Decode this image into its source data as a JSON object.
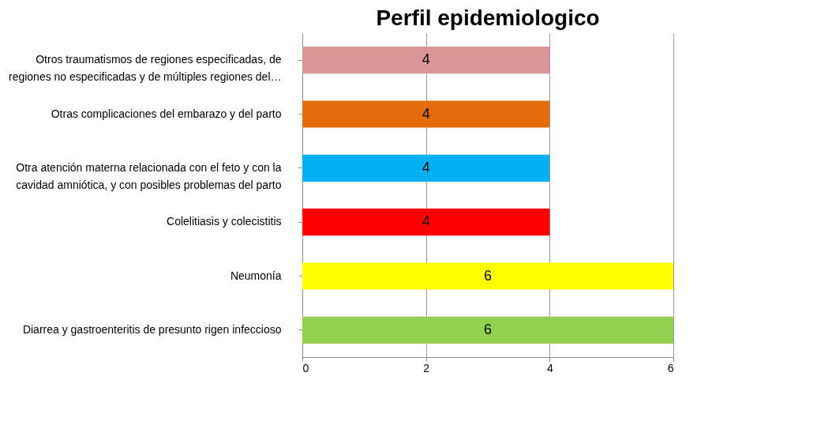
{
  "chart_data": {
    "type": "bar",
    "orientation": "horizontal",
    "title": "Perfil epidemiologico",
    "categories": [
      "Otros traumatismos de regiones especificadas, de\nregiones no especificadas y de múltiples regiones del…",
      "Otras complicaciones del embarazo y del parto",
      "Otra atención materna relacionada con el feto y con la\ncavidad amniótica, y con posibles problemas del parto",
      "Colelitiasis y colecistitis",
      "Neumonía",
      "Diarrea y gastroenteritis de presunto rigen infeccioso"
    ],
    "values": [
      4,
      4,
      4,
      4,
      6,
      6
    ],
    "colors": [
      "#d99694",
      "#e46c0a",
      "#00b0f0",
      "#ff0000",
      "#ffff00",
      "#92d050"
    ],
    "xlim": [
      0,
      6
    ],
    "xticks": [
      0,
      2,
      4,
      6
    ],
    "grid": "x",
    "data_labels": true
  }
}
